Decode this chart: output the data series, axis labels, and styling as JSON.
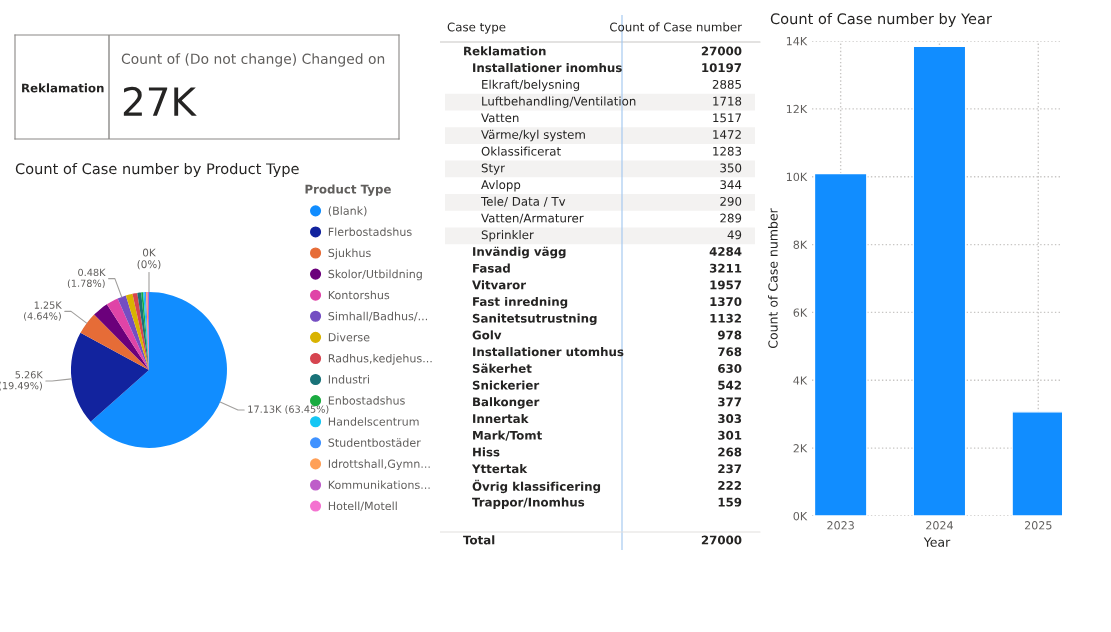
{
  "chart_data": [
    {
      "type": "other",
      "title": "Count of (Do not change) Changed on",
      "annotations": [
        "Reklamation",
        "27K"
      ]
    },
    {
      "type": "pie",
      "title": "Count of Case number by Product Type",
      "legend_title": "Product Type",
      "legend": "right",
      "categories": [
        "(Blank)",
        "Flerbostadshus",
        "Sjukhus",
        "Skolor/Utbildning",
        "Kontorshus",
        "Simhall/Badhus/...",
        "Diverse",
        "Radhus,kedjehus...",
        "Industri",
        "Enbostadshus",
        "Handelscentrum",
        "Studentbostäder",
        "Idrottshall,Gymn...",
        "Kommunikations...",
        "Hotell/Motell"
      ],
      "values": [
        63.45,
        19.49,
        4.64,
        3.34,
        2.5,
        1.78,
        1.4,
        1.0,
        0.8,
        0.4,
        0.3,
        0.3,
        0.3,
        0.3,
        0
      ],
      "value_labels": [
        "17.13K (63.45%)",
        "5.26K (19.49%)",
        "1.25K (4.64%)",
        null,
        null,
        "0.48K (1.78%)",
        null,
        null,
        null,
        null,
        null,
        null,
        null,
        null,
        "0K (0%)"
      ],
      "colors": [
        "#118dff",
        "#12239e",
        "#e66c37",
        "#6b007b",
        "#e044a7",
        "#744ec2",
        "#d9b300",
        "#d64550",
        "#197278",
        "#1aab40",
        "#15c6f4",
        "#4092ff",
        "#ffa058",
        "#be5dc9",
        "#f472d0"
      ]
    },
    {
      "type": "other",
      "annotations": [
        "Case type",
        "Count of Case number"
      ],
      "categories": [
        "Reklamation",
        "Installationer inomhus",
        "Elkraft/belysning",
        "Luftbehandling/Ventilation",
        "Vatten",
        "Värme/kyl system",
        "Oklassificerat",
        "Styr",
        "Avlopp",
        "Tele/ Data / Tv",
        "Vatten/Armaturer",
        "Sprinkler",
        "Invändig vägg",
        "Fasad",
        "Vitvaror",
        "Fast inredning",
        "Sanitetsutrustning",
        "Golv",
        "Installationer utomhus",
        "Säkerhet",
        "Snickerier",
        "Balkonger",
        "Innertak",
        "Mark/Tomt",
        "Hiss",
        "Yttertak",
        "Övrig klassificering",
        "Trappor/Inomhus",
        "Total"
      ],
      "series": [
        {
          "values": [
            27000,
            null,
            null,
            null,
            null,
            null,
            null,
            null,
            null,
            null,
            null,
            null,
            null,
            null,
            null,
            null,
            null,
            null,
            null,
            null,
            null,
            null,
            null,
            null,
            null,
            null,
            null,
            null,
            27000
          ]
        },
        {
          "values": [
            null,
            10197,
            null,
            null,
            null,
            null,
            null,
            null,
            null,
            null,
            null,
            null,
            4284,
            3211,
            1957,
            1370,
            1132,
            978,
            768,
            630,
            542,
            377,
            303,
            301,
            268,
            237,
            222,
            159,
            null
          ]
        },
        {
          "values": [
            null,
            null,
            2885,
            1718,
            1517,
            1472,
            1283,
            350,
            344,
            290,
            289,
            49,
            null,
            null,
            null,
            null,
            null,
            null,
            null,
            null,
            null,
            null,
            null,
            null,
            null,
            null,
            null,
            null,
            null
          ]
        }
      ],
      "data_labels": true
    },
    {
      "type": "bar",
      "title": "Count of Case number by Year",
      "xlabel": "Year",
      "ylabel": "Count of Case number",
      "categories": [
        "2023",
        "2024",
        "2025"
      ],
      "values": [
        10090,
        13840,
        3070
      ],
      "color": "#118dff",
      "ylim": [
        0,
        14000
      ],
      "yticks": [
        {
          "value": 0,
          "label": "0K"
        },
        {
          "value": 2000,
          "label": "2K"
        },
        {
          "value": 4000,
          "label": "4K"
        },
        {
          "value": 6000,
          "label": "6K"
        },
        {
          "value": 8000,
          "label": "8K"
        },
        {
          "value": 10000,
          "label": "10K"
        },
        {
          "value": 12000,
          "label": "12K"
        },
        {
          "value": 14000,
          "label": "14K"
        }
      ],
      "grid": true
    }
  ]
}
